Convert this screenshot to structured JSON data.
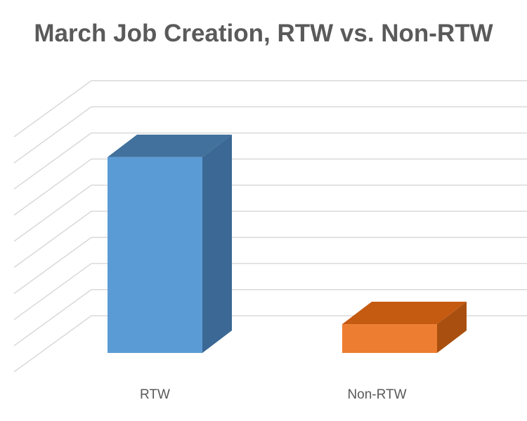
{
  "chart_data": {
    "type": "bar",
    "title": "March Job Creation, RTW vs. Non-RTW",
    "categories": [
      "RTW",
      "Non-RTW"
    ],
    "values": [
      7.5,
      1.1
    ],
    "ylim": [
      0,
      9
    ],
    "grid": true,
    "style": "3d-column",
    "colors": {
      "front": [
        "#5b9bd5",
        "#ed7d31"
      ],
      "top": [
        "#41719c",
        "#c55a11"
      ],
      "side": [
        "#3b6894",
        "#a94f0f"
      ],
      "grid": "#d9d9d9"
    }
  }
}
